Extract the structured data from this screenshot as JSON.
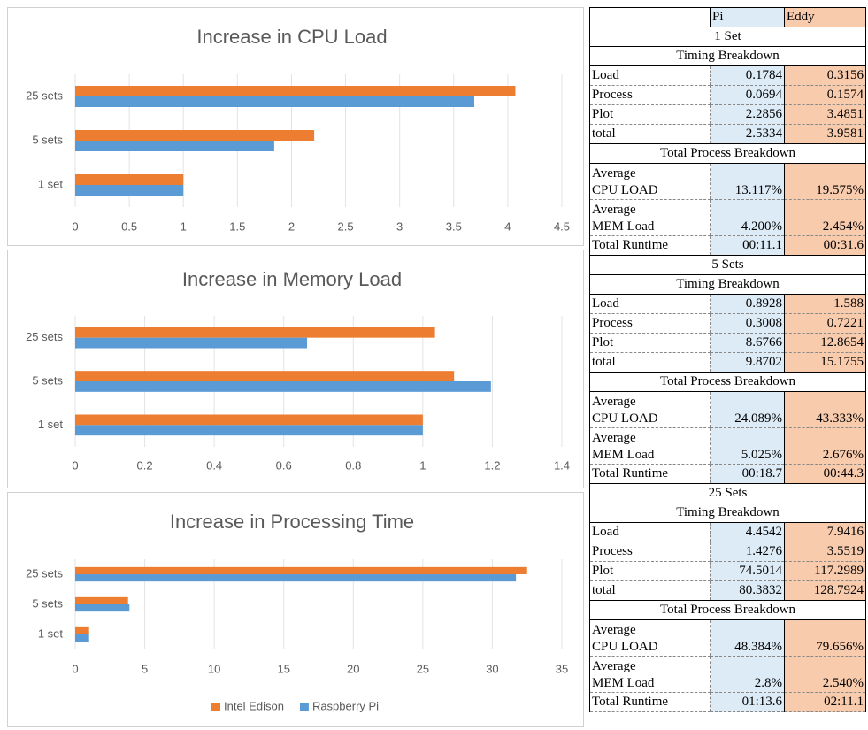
{
  "chart_data": [
    {
      "type": "hbar",
      "title": "Increase in CPU Load",
      "categories": [
        "1 set",
        "5 sets",
        "25 sets"
      ],
      "series": [
        {
          "color": "#ed7d31",
          "values": [
            1,
            2.21,
            4.07
          ]
        },
        {
          "color": "#5b9bd5",
          "values": [
            1,
            1.84,
            3.69
          ]
        }
      ],
      "xlim": [
        0,
        4.5
      ],
      "xticks": [
        0,
        0.5,
        1,
        1.5,
        2,
        2.5,
        3,
        3.5,
        4,
        4.5
      ],
      "grid": true
    },
    {
      "type": "hbar",
      "title": "Increase in Memory Load",
      "categories": [
        "1 set",
        "5 sets",
        "25 sets"
      ],
      "series": [
        {
          "color": "#ed7d31",
          "values": [
            1,
            1.09,
            1.035
          ]
        },
        {
          "color": "#5b9bd5",
          "values": [
            1,
            1.196,
            0.667
          ]
        }
      ],
      "xlim": [
        0,
        1.4
      ],
      "xticks": [
        0,
        0.2,
        0.4,
        0.6,
        0.8,
        1,
        1.2,
        1.4
      ],
      "grid": true
    },
    {
      "type": "hbar",
      "title": "Increase in Processing Time",
      "categories": [
        "1 set",
        "5 sets",
        "25 sets"
      ],
      "series": [
        {
          "name": "Intel Edison",
          "color": "#ed7d31",
          "values": [
            1,
            3.8,
            32.5
          ]
        },
        {
          "name": "Raspberry Pi",
          "color": "#5b9bd5",
          "values": [
            1,
            3.9,
            31.7
          ]
        }
      ],
      "xlim": [
        0,
        35
      ],
      "xticks": [
        0,
        5,
        10,
        15,
        20,
        25,
        30,
        35
      ],
      "grid": true,
      "legend": "bottom"
    }
  ],
  "table": {
    "header": [
      "Pi",
      "Eddy"
    ],
    "sections": [
      {
        "title": "1 Set",
        "timing_title": "Timing Breakdown",
        "timing_rows": [
          [
            "Load",
            "0.1784",
            "0.3156"
          ],
          [
            "Process",
            "0.0694",
            "0.1574"
          ],
          [
            "Plot",
            "2.2856",
            "3.4851"
          ],
          [
            "total",
            "2.5334",
            "3.9581"
          ]
        ],
        "process_title": "Total Process Breakdown",
        "process_rows": [
          [
            "Average\nCPU LOAD",
            "13.117%",
            "19.575%"
          ],
          [
            "Average\nMEM Load",
            "4.200%",
            "2.454%"
          ],
          [
            "Total Runtime",
            "00:11.1",
            "00:31.6"
          ]
        ]
      },
      {
        "title": "5 Sets",
        "timing_title": "Timing Breakdown",
        "timing_rows": [
          [
            "Load",
            "0.8928",
            "1.588"
          ],
          [
            "Process",
            "0.3008",
            "0.7221"
          ],
          [
            "Plot",
            "8.6766",
            "12.8654"
          ],
          [
            "total",
            "9.8702",
            "15.1755"
          ]
        ],
        "process_title": "Total Process Breakdown",
        "process_rows": [
          [
            "Average\nCPU LOAD",
            "24.089%",
            "43.333%"
          ],
          [
            "Average\nMEM Load",
            "5.025%",
            "2.676%"
          ],
          [
            "Total Runtime",
            "00:18.7",
            "00:44.3"
          ]
        ]
      },
      {
        "title": "25 Sets",
        "timing_title": "Timing Breakdown",
        "timing_rows": [
          [
            "Load",
            "4.4542",
            "7.9416"
          ],
          [
            "Process",
            "1.4276",
            "3.5519"
          ],
          [
            "Plot",
            "74.5014",
            "117.2989"
          ],
          [
            "total",
            "80.3832",
            "128.7924"
          ]
        ],
        "process_title": "Total Process Breakdown",
        "process_rows": [
          [
            "Average\nCPU LOAD",
            "48.384%",
            "79.656%"
          ],
          [
            "Average\nMEM Load",
            "2.8%",
            "2.540%"
          ],
          [
            "Total Runtime",
            "01:13.6",
            "02:11.1"
          ]
        ]
      }
    ]
  }
}
